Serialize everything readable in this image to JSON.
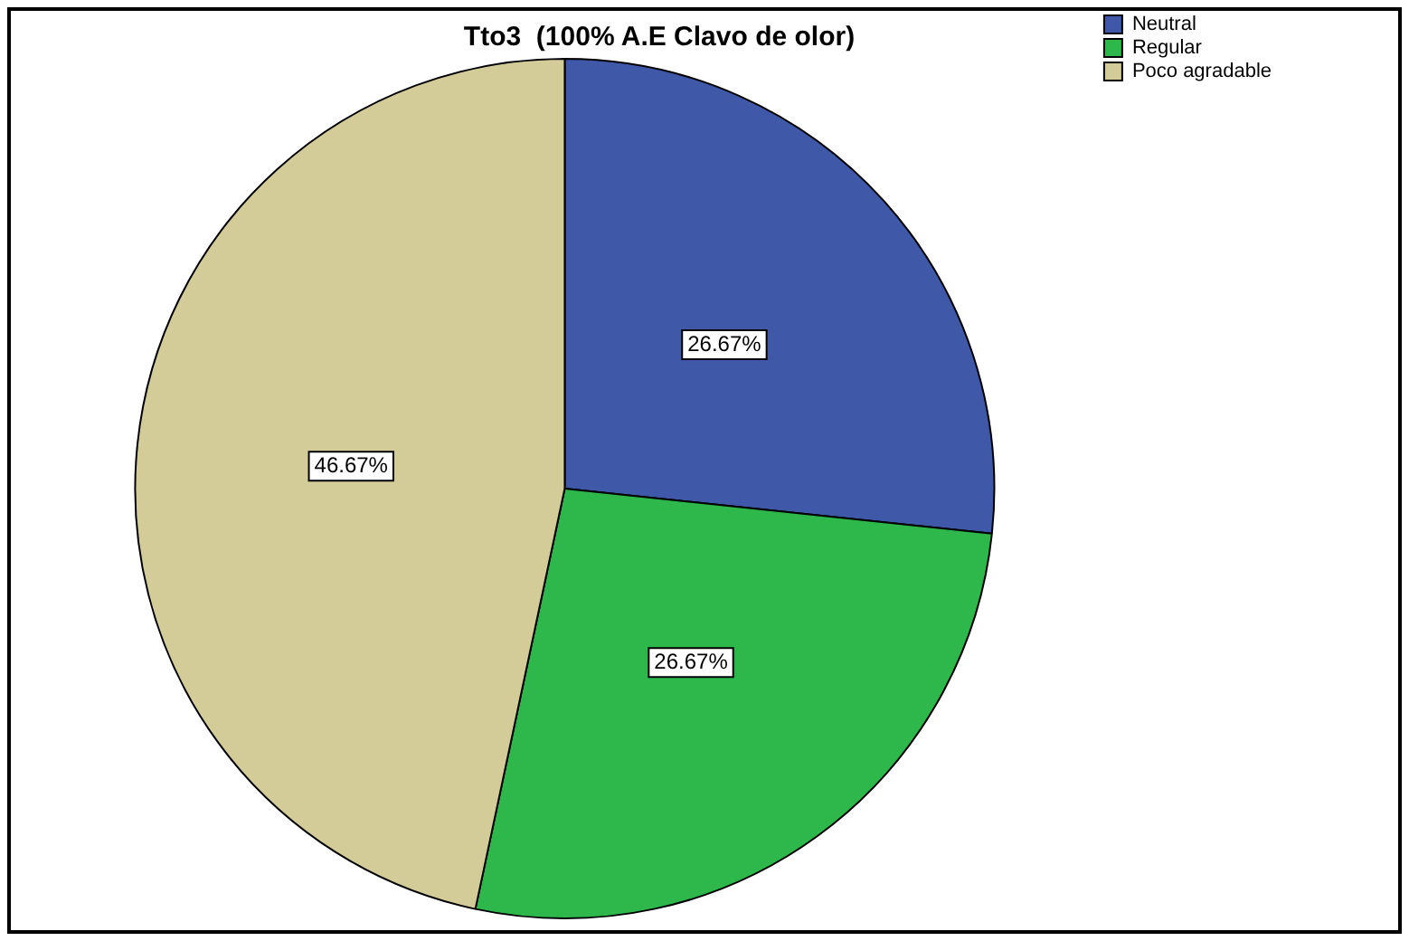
{
  "chart_data": {
    "type": "pie",
    "title": "Tto3  (100% A.E Clavo de olor)",
    "categories": [
      "Neutral",
      "Regular",
      "Poco agradable"
    ],
    "values": [
      26.67,
      26.67,
      46.67
    ],
    "colors": [
      "#3f58a8",
      "#2eb84b",
      "#d3cc99"
    ],
    "value_labels": [
      "26.67%",
      "26.67%",
      "46.67%"
    ],
    "legend": "top right"
  }
}
